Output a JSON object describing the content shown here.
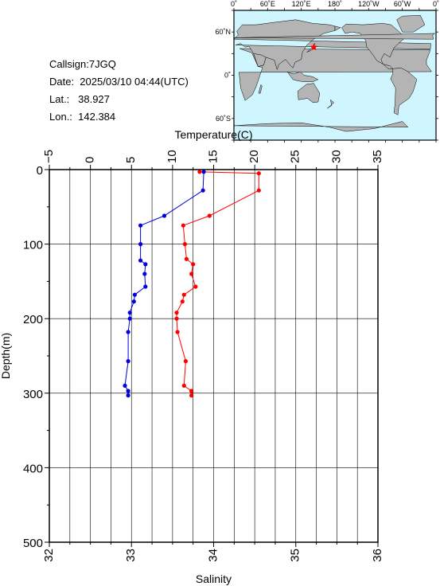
{
  "station": {
    "callsign": "Callsign:7JGQ",
    "date": "Date:  2025/03/10 04:44(UTC)",
    "lat": "Lat.:   38.927",
    "lon": "Lon.:  142.384"
  },
  "map": {
    "lon_labels": [
      "0˚",
      "60˚E",
      "120˚E",
      "180˚",
      "120˚W",
      "60˚W",
      "0˚"
    ],
    "lat_labels": [
      "60˚N",
      "0˚",
      "60˚S"
    ],
    "ocean_color": "#cff6ff",
    "land_color": "#b4b4b4",
    "marker_color": "#ff0000",
    "marker": {
      "lon": 142.384,
      "lat": 38.927
    }
  },
  "chart_data": {
    "type": "line",
    "ylabel": "Depth(m)",
    "ylim": [
      0,
      500
    ],
    "y_reversed": true,
    "y_ticks": [
      0,
      100,
      200,
      300,
      400,
      500
    ],
    "top_axis": {
      "label": "Temperature(C)",
      "range": [
        -5,
        35
      ],
      "ticks": [
        "−5",
        "0",
        "5",
        "10",
        "15",
        "20",
        "25",
        "30",
        "35"
      ]
    },
    "bottom_axis": {
      "label": "Salinity",
      "range": [
        32,
        36
      ],
      "ticks": [
        "32",
        "33",
        "34",
        "35",
        "36"
      ]
    },
    "grid": true,
    "series": [
      {
        "quantity": "temperature",
        "axis": "top",
        "color": "#ff0000",
        "points": [
          {
            "value": 13.3,
            "depth": 3
          },
          {
            "value": 20.5,
            "depth": 5
          },
          {
            "value": 20.5,
            "depth": 28
          },
          {
            "value": 14.5,
            "depth": 62
          },
          {
            "value": 11.3,
            "depth": 75
          },
          {
            "value": 11.5,
            "depth": 100
          },
          {
            "value": 11.7,
            "depth": 120
          },
          {
            "value": 12.5,
            "depth": 127
          },
          {
            "value": 12.3,
            "depth": 140
          },
          {
            "value": 12.8,
            "depth": 157
          },
          {
            "value": 11.4,
            "depth": 168
          },
          {
            "value": 11.2,
            "depth": 177
          },
          {
            "value": 10.5,
            "depth": 192
          },
          {
            "value": 10.5,
            "depth": 200
          },
          {
            "value": 10.6,
            "depth": 218
          },
          {
            "value": 11.6,
            "depth": 257
          },
          {
            "value": 11.4,
            "depth": 290
          },
          {
            "value": 12.3,
            "depth": 297
          },
          {
            "value": 12.3,
            "depth": 303
          }
        ]
      },
      {
        "quantity": "salinity",
        "axis": "bottom",
        "color": "#0000dd",
        "points": [
          {
            "value": 33.88,
            "depth": 3
          },
          {
            "value": 33.87,
            "depth": 28
          },
          {
            "value": 33.4,
            "depth": 62
          },
          {
            "value": 33.11,
            "depth": 75
          },
          {
            "value": 33.11,
            "depth": 100
          },
          {
            "value": 33.11,
            "depth": 122
          },
          {
            "value": 33.17,
            "depth": 127
          },
          {
            "value": 33.16,
            "depth": 140
          },
          {
            "value": 33.17,
            "depth": 157
          },
          {
            "value": 33.04,
            "depth": 168
          },
          {
            "value": 33.03,
            "depth": 177
          },
          {
            "value": 32.98,
            "depth": 192
          },
          {
            "value": 32.98,
            "depth": 200
          },
          {
            "value": 32.96,
            "depth": 218
          },
          {
            "value": 32.96,
            "depth": 257
          },
          {
            "value": 32.92,
            "depth": 290
          },
          {
            "value": 32.96,
            "depth": 297
          },
          {
            "value": 32.96,
            "depth": 303
          }
        ]
      }
    ]
  }
}
